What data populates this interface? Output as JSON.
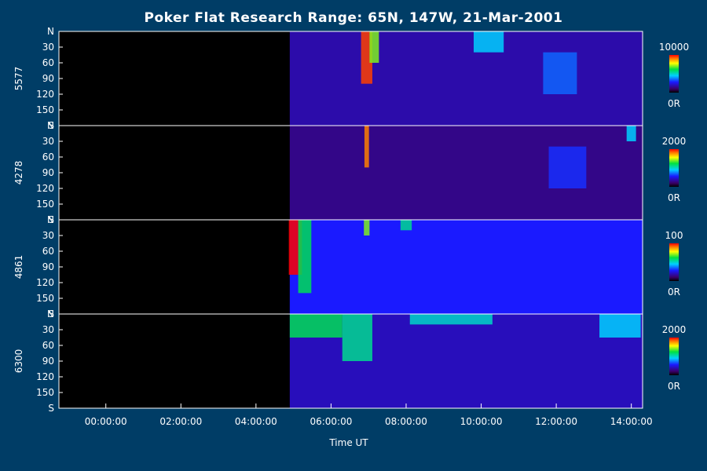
{
  "chart_data": {
    "type": "heatmap",
    "title": "Poker Flat Research Range: 65N, 147W, 21-Mar-2001",
    "xlabel": "Time UT",
    "x_ticks": [
      "00:00:00",
      "02:00:00",
      "04:00:00",
      "06:00:00",
      "08:00:00",
      "10:00:00",
      "12:00:00",
      "14:00:00"
    ],
    "x_range_hours": [
      -1.25,
      14.3
    ],
    "data_start_hours": 4.9,
    "y_ticks": [
      "N",
      "30",
      "60",
      "90",
      "120",
      "150",
      "S"
    ],
    "panels": [
      {
        "name": "5577",
        "colorbar_max": "10000",
        "colorbar_min": "0R",
        "background_level": 0.18,
        "features": [
          {
            "t": 6.95,
            "width_h": 0.3,
            "zenith_from": 0,
            "zenith_to": 100,
            "level": 0.95
          },
          {
            "t": 7.15,
            "width_h": 0.25,
            "zenith_from": 0,
            "zenith_to": 60,
            "level": 0.7
          },
          {
            "t": 10.2,
            "width_h": 0.8,
            "zenith_from": 0,
            "zenith_to": 40,
            "level": 0.45
          },
          {
            "t": 12.1,
            "width_h": 0.9,
            "zenith_from": 40,
            "zenith_to": 120,
            "level": 0.35
          }
        ]
      },
      {
        "name": "4278",
        "colorbar_max": "2000",
        "colorbar_min": "0R",
        "background_level": 0.14,
        "features": [
          {
            "t": 6.95,
            "width_h": 0.12,
            "zenith_from": 0,
            "zenith_to": 80,
            "level": 0.9
          },
          {
            "t": 12.3,
            "width_h": 1.0,
            "zenith_from": 40,
            "zenith_to": 120,
            "level": 0.3
          },
          {
            "t": 14.0,
            "width_h": 0.25,
            "zenith_from": 0,
            "zenith_to": 30,
            "level": 0.45
          }
        ]
      },
      {
        "name": "4861",
        "colorbar_max": "100",
        "colorbar_min": "0R",
        "background_level": 0.28,
        "features": [
          {
            "t": 5.05,
            "width_h": 0.35,
            "zenith_from": 0,
            "zenith_to": 105,
            "level": 1.0
          },
          {
            "t": 5.3,
            "width_h": 0.35,
            "zenith_from": 0,
            "zenith_to": 140,
            "level": 0.6
          },
          {
            "t": 6.95,
            "width_h": 0.15,
            "zenith_from": 0,
            "zenith_to": 30,
            "level": 0.7
          },
          {
            "t": 8.0,
            "width_h": 0.3,
            "zenith_from": 0,
            "zenith_to": 20,
            "level": 0.55
          }
        ]
      },
      {
        "name": "6300",
        "colorbar_max": "2000",
        "colorbar_min": "0R",
        "background_level": 0.2,
        "features": [
          {
            "t": 5.6,
            "width_h": 1.4,
            "zenith_from": 0,
            "zenith_to": 45,
            "level": 0.6
          },
          {
            "t": 6.7,
            "width_h": 0.8,
            "zenith_from": 0,
            "zenith_to": 90,
            "level": 0.55
          },
          {
            "t": 9.2,
            "width_h": 2.2,
            "zenith_from": 0,
            "zenith_to": 20,
            "level": 0.5
          },
          {
            "t": 13.7,
            "width_h": 1.1,
            "zenith_from": 0,
            "zenith_to": 45,
            "level": 0.45
          }
        ]
      }
    ]
  }
}
